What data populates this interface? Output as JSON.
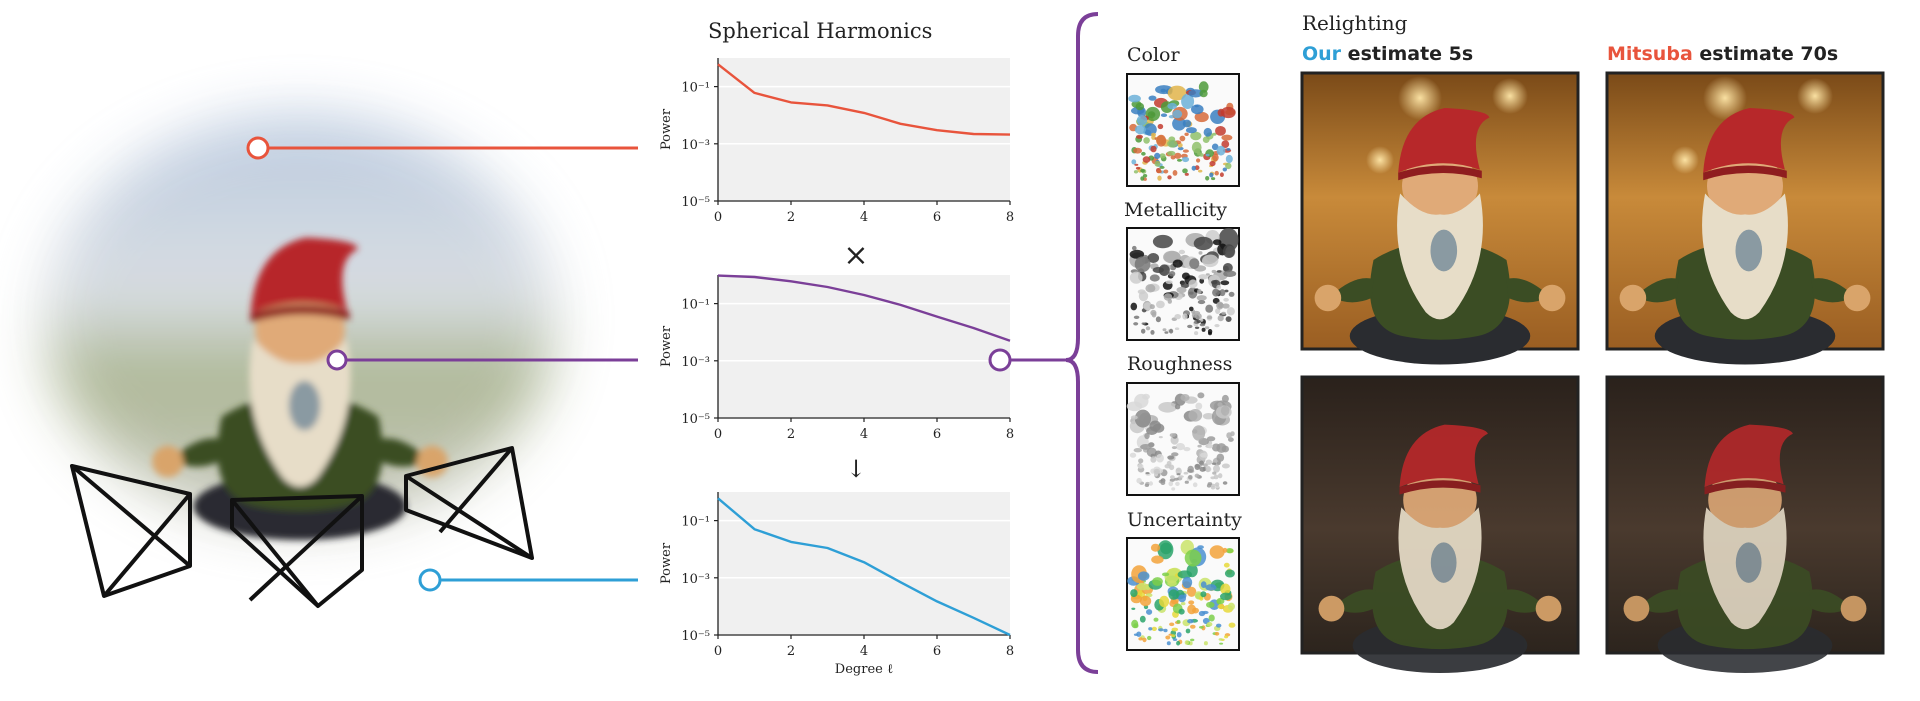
{
  "colors": {
    "env_sh": "#e8543c",
    "brdf_sh": "#7b3f98",
    "product_sh": "#2e9fd6",
    "our_label": "#2e9fd6",
    "mitsuba_label": "#e8543c",
    "plot_bg": "#f0f0f0",
    "bracket": "#7b3f98"
  },
  "sh_section": {
    "title": "Spherical Harmonics",
    "multiply_symbol": "×",
    "arrow_symbol": "↓"
  },
  "materials": {
    "items": [
      {
        "label": "Color",
        "icon": "color-map-icon"
      },
      {
        "label": "Metallicity",
        "icon": "metallicity-map-icon"
      },
      {
        "label": "Roughness",
        "icon": "roughness-map-icon"
      },
      {
        "label": "Uncertainty",
        "icon": "uncertainty-map-icon"
      }
    ]
  },
  "relighting": {
    "title": "Relighting",
    "our_word": "Our",
    "our_rest": " estimate 5s",
    "mitsuba_word": "Mitsuba",
    "mitsuba_rest": " estimate 70s"
  },
  "chart_data": [
    {
      "type": "line",
      "title": "",
      "xlabel": "",
      "ylabel": "Power",
      "yscale": "log",
      "xlim": [
        0,
        8
      ],
      "ylim": [
        1e-05,
        1
      ],
      "xticks": [
        "0",
        "2",
        "4",
        "6",
        "8"
      ],
      "yticks": [
        "10⁻⁵",
        "10⁻³",
        "10⁻¹"
      ],
      "grid": true,
      "series": [
        {
          "x": [
            0,
            1,
            2,
            3,
            4,
            5,
            6,
            7,
            8
          ],
          "y": [
            0.6,
            0.06,
            0.028,
            0.022,
            0.012,
            0.005,
            0.003,
            0.0022,
            0.0021
          ]
        }
      ]
    },
    {
      "type": "line",
      "title": "",
      "xlabel": "",
      "ylabel": "Power",
      "yscale": "log",
      "xlim": [
        0,
        8
      ],
      "ylim": [
        1e-05,
        1
      ],
      "xticks": [
        "0",
        "2",
        "4",
        "6",
        "8"
      ],
      "yticks": [
        "10⁻⁵",
        "10⁻³",
        "10⁻¹"
      ],
      "grid": true,
      "series": [
        {
          "x": [
            0,
            1,
            2,
            3,
            4,
            5,
            6,
            7,
            8
          ],
          "y": [
            0.95,
            0.85,
            0.6,
            0.38,
            0.2,
            0.09,
            0.035,
            0.014,
            0.005
          ]
        }
      ]
    },
    {
      "type": "line",
      "title": "",
      "xlabel": "Degree ℓ",
      "ylabel": "Power",
      "yscale": "log",
      "xlim": [
        0,
        8
      ],
      "ylim": [
        1e-05,
        1
      ],
      "xticks": [
        "0",
        "2",
        "4",
        "6",
        "8"
      ],
      "yticks": [
        "10⁻⁵",
        "10⁻³",
        "10⁻¹"
      ],
      "grid": true,
      "series": [
        {
          "x": [
            0,
            1,
            2,
            3,
            4,
            5,
            6,
            7,
            8
          ],
          "y": [
            0.6,
            0.05,
            0.018,
            0.011,
            0.0035,
            0.0007,
            0.00015,
            4e-05,
            1e-05
          ]
        }
      ]
    }
  ]
}
